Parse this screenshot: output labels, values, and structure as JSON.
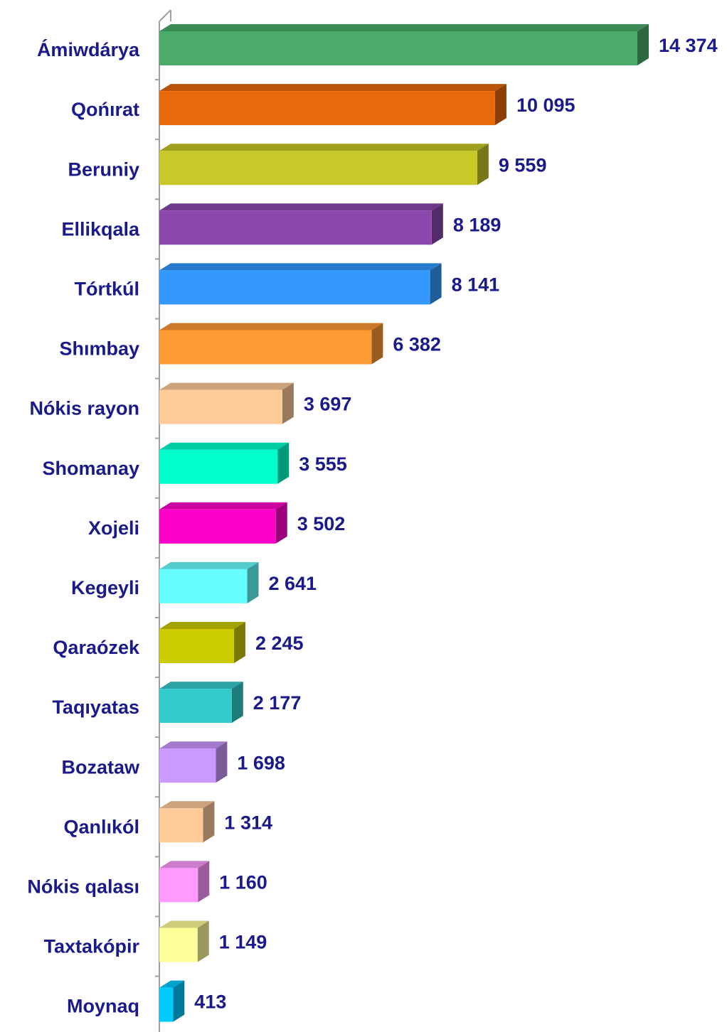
{
  "chart_data": {
    "type": "bar",
    "orientation": "horizontal",
    "three_d": true,
    "categories": [
      "Ámiwdárya",
      "Qońırat",
      "Beruniy",
      "Ellikqala",
      "Tórtkúl",
      "Shımbay",
      "Nókis rayon",
      "Shomanay",
      "Xojeli",
      "Kegeyli",
      "Qaraózek",
      "Taqıyatas",
      "Bozataw",
      "Qanlıkól",
      "Nókis qalası",
      "Taxtakópir",
      "Moynaq"
    ],
    "values": [
      14374,
      10095,
      9559,
      8189,
      8141,
      6382,
      3697,
      3555,
      3502,
      2641,
      2245,
      2177,
      1698,
      1314,
      1160,
      1149,
      413
    ],
    "value_labels": [
      "14 374",
      "10 095",
      "9 559",
      "8 189",
      "8 141",
      "6 382",
      "3 697",
      "3 555",
      "3 502",
      "2 641",
      "2 245",
      "2 177",
      "1 698",
      "1 314",
      "1 160",
      "1 149",
      "413"
    ],
    "colors": [
      "#4aab6a",
      "#e8690a",
      "#c8c828",
      "#8b47ad",
      "#3399ff",
      "#ff9933",
      "#ffcc99",
      "#00ffcc",
      "#ff00cc",
      "#66ffff",
      "#cccc00",
      "#33cccc",
      "#cc99ff",
      "#ffcc99",
      "#ff99ff",
      "#ffff99",
      "#00ccff"
    ]
  }
}
